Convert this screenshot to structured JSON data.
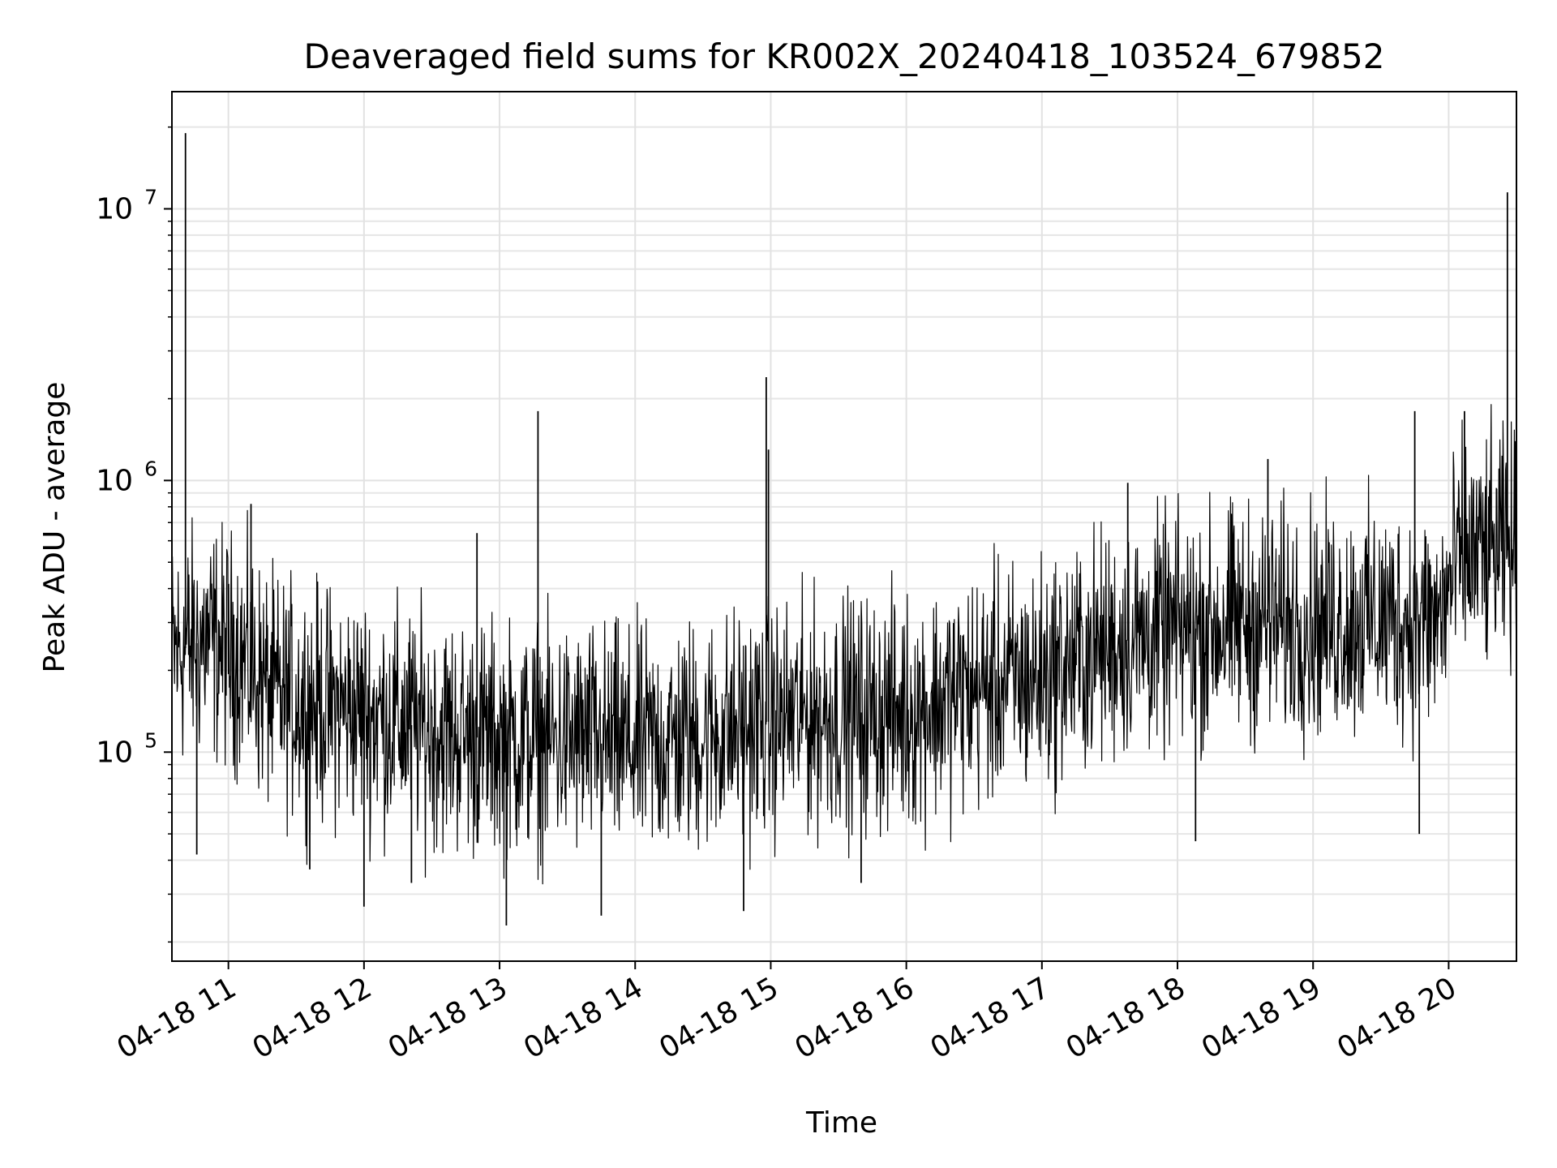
{
  "chart_data": {
    "type": "line",
    "title": "Deaveraged field sums for KR002X_20240418_103524_679852",
    "xlabel": "Time",
    "ylabel": "Peak ADU - average",
    "yscale": "log",
    "ylim": [
      17000,
      27000000
    ],
    "xlim": [
      "2024-04-18 10:35",
      "2024-04-18 20:30"
    ],
    "grid": true,
    "line_color": "#000000",
    "x_ticks": [
      {
        "x": "2024-04-18 11:00",
        "label": "04-18 11"
      },
      {
        "x": "2024-04-18 12:00",
        "label": "04-18 12"
      },
      {
        "x": "2024-04-18 13:00",
        "label": "04-18 13"
      },
      {
        "x": "2024-04-18 14:00",
        "label": "04-18 14"
      },
      {
        "x": "2024-04-18 15:00",
        "label": "04-18 15"
      },
      {
        "x": "2024-04-18 16:00",
        "label": "04-18 16"
      },
      {
        "x": "2024-04-18 17:00",
        "label": "04-18 17"
      },
      {
        "x": "2024-04-18 18:00",
        "label": "04-18 18"
      },
      {
        "x": "2024-04-18 19:00",
        "label": "04-18 19"
      },
      {
        "x": "2024-04-18 20:00",
        "label": "04-18 20"
      }
    ],
    "y_ticks": [
      {
        "value": 100000,
        "base": "10",
        "exp": "5"
      },
      {
        "value": 1000000,
        "base": "10",
        "exp": "6"
      },
      {
        "value": 10000000,
        "base": "10",
        "exp": "7"
      }
    ],
    "series": [
      {
        "baseline": [
          [
            "2024-04-18 10:35",
            230000
          ],
          [
            "2024-04-18 10:50",
            260000
          ],
          [
            "2024-04-18 11:05",
            230000
          ],
          [
            "2024-04-18 11:20",
            160000
          ],
          [
            "2024-04-18 11:40",
            150000
          ],
          [
            "2024-04-18 12:00",
            140000
          ],
          [
            "2024-04-18 12:30",
            120000
          ],
          [
            "2024-04-18 13:00",
            110000
          ],
          [
            "2024-04-18 13:30",
            110000
          ],
          [
            "2024-04-18 14:00",
            105000
          ],
          [
            "2024-04-18 14:30",
            115000
          ],
          [
            "2024-04-18 15:00",
            130000
          ],
          [
            "2024-04-18 15:30",
            140000
          ],
          [
            "2024-04-18 16:00",
            140000
          ],
          [
            "2024-04-18 16:30",
            170000
          ],
          [
            "2024-04-18 17:00",
            190000
          ],
          [
            "2024-04-18 17:30",
            250000
          ],
          [
            "2024-04-18 18:00",
            280000
          ],
          [
            "2024-04-18 18:30",
            300000
          ],
          [
            "2024-04-18 19:00",
            300000
          ],
          [
            "2024-04-18 19:30",
            310000
          ],
          [
            "2024-04-18 19:55",
            300000
          ],
          [
            "2024-04-18 20:05",
            520000
          ],
          [
            "2024-04-18 20:30",
            560000
          ]
        ],
        "spikes": [
          [
            "2024-04-18 10:41",
            19000000
          ],
          [
            "2024-04-18 10:46",
            42000
          ],
          [
            "2024-04-18 11:10",
            820000
          ],
          [
            "2024-04-18 11:36",
            37000
          ],
          [
            "2024-04-18 12:00",
            27000
          ],
          [
            "2024-04-18 12:21",
            33000
          ],
          [
            "2024-04-18 12:50",
            640000
          ],
          [
            "2024-04-18 13:03",
            23000
          ],
          [
            "2024-04-18 13:17",
            1800000
          ],
          [
            "2024-04-18 13:45",
            25000
          ],
          [
            "2024-04-18 14:48",
            26000
          ],
          [
            "2024-04-18 14:58",
            2400000
          ],
          [
            "2024-04-18 14:59",
            1300000
          ],
          [
            "2024-04-18 15:40",
            33000
          ],
          [
            "2024-04-18 17:38",
            980000
          ],
          [
            "2024-04-18 18:08",
            47000
          ],
          [
            "2024-04-18 18:40",
            1200000
          ],
          [
            "2024-04-18 19:45",
            1800000
          ],
          [
            "2024-04-18 19:47",
            50000
          ],
          [
            "2024-04-18 20:07",
            1800000
          ],
          [
            "2024-04-18 20:26",
            11500000
          ]
        ]
      }
    ]
  }
}
